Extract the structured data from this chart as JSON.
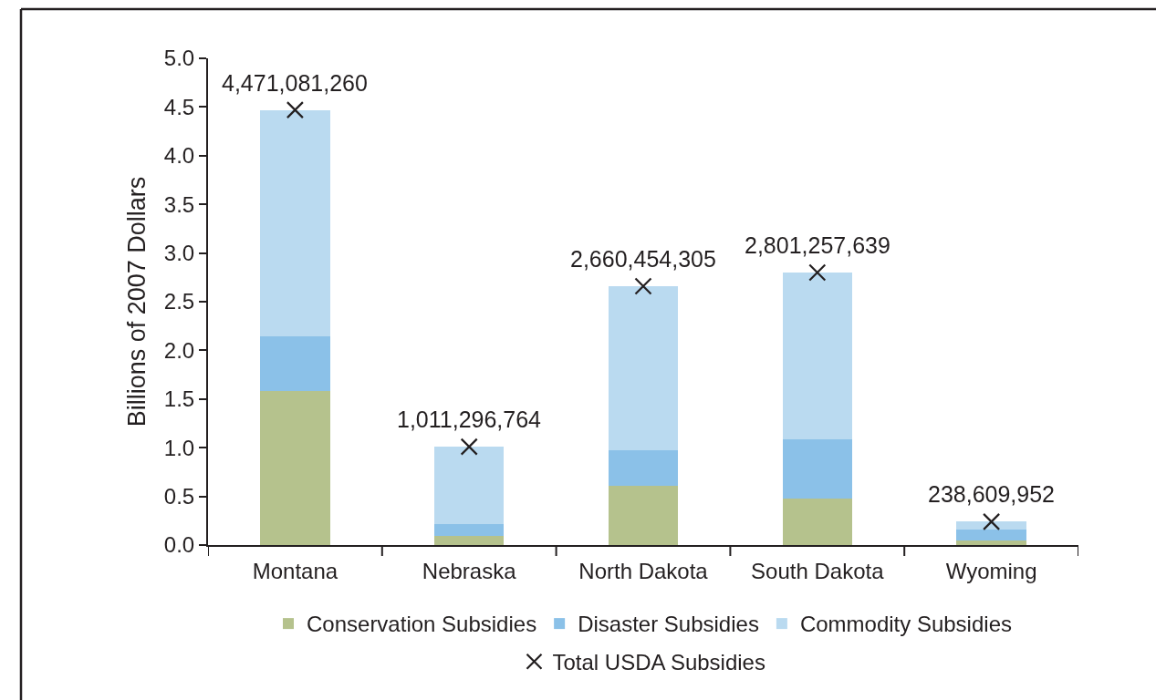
{
  "chart_data": {
    "type": "bar",
    "stacked": true,
    "ylabel": "Billions of 2007 Dollars",
    "categories": [
      "Montana",
      "Nebraska",
      "North Dakota",
      "South Dakota",
      "Wyoming"
    ],
    "ylim": [
      0,
      5
    ],
    "yticks": [
      {
        "value": 0,
        "label": "0.0"
      },
      0.5,
      {
        "value": 1,
        "label": "1.0"
      },
      1.5,
      {
        "value": 2,
        "label": "2.0"
      },
      2.5,
      {
        "value": 3,
        "label": "3.0"
      },
      3.5,
      {
        "value": 4,
        "label": "4.0"
      },
      4.5,
      {
        "value": 5,
        "label": "5.0"
      }
    ],
    "legend": "bottom",
    "series": [
      {
        "name": "Conservation Subsidies",
        "color": "#b5c28d",
        "values": [
          1.58,
          0.09,
          0.61,
          0.48,
          0.05
        ]
      },
      {
        "name": "Disaster Subsidies",
        "color": "#8bc1e8",
        "values": [
          0.56,
          0.13,
          0.36,
          0.61,
          0.11
        ]
      },
      {
        "name": "Commodity Subsidies",
        "color": "#badaf0",
        "values": [
          2.33,
          0.79,
          1.69,
          1.71,
          0.08
        ]
      },
      {
        "name": "Total USDA Subsidies",
        "type": "scatter",
        "marker": "cross",
        "color": "#231f20",
        "values": [
          4.47,
          1.01,
          2.66,
          2.8,
          0.24
        ]
      }
    ],
    "annotations": [
      {
        "text": "4,471,081,260",
        "x": "Montana",
        "y": 4.47
      },
      {
        "text": "1,011,296,764",
        "x": "Nebraska",
        "y": 1.01
      },
      {
        "text": "2,660,454,305",
        "x": "North Dakota",
        "y": 2.66
      },
      {
        "text": "2,801,257,639",
        "x": "South Dakota",
        "y": 2.8
      },
      {
        "text": "238,609,952",
        "x": "Wyoming",
        "y": 0.24
      }
    ]
  }
}
